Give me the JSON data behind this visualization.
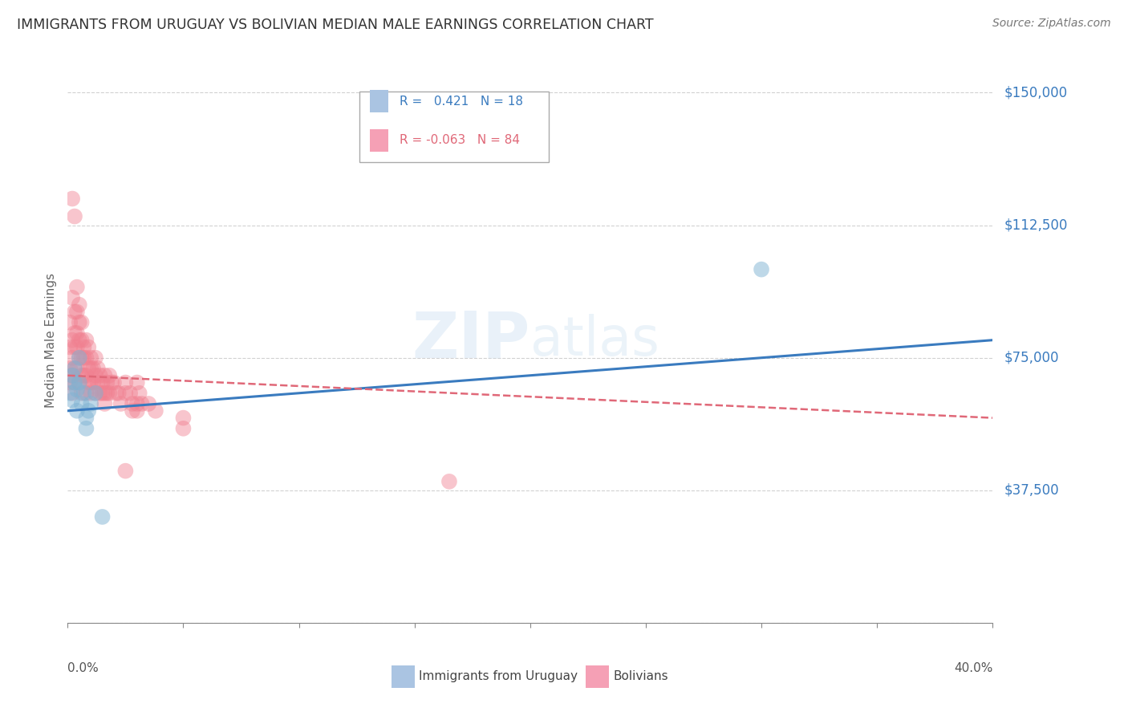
{
  "title": "IMMIGRANTS FROM URUGUAY VS BOLIVIAN MEDIAN MALE EARNINGS CORRELATION CHART",
  "source": "Source: ZipAtlas.com",
  "ylabel": "Median Male Earnings",
  "yticks": [
    0,
    37500,
    75000,
    112500,
    150000
  ],
  "ytick_labels": [
    "",
    "$37,500",
    "$75,000",
    "$112,500",
    "$150,000"
  ],
  "xlim": [
    0.0,
    0.4
  ],
  "ylim": [
    0,
    160000
  ],
  "watermark": "ZIPatlas",
  "legend_series1_label": "R =   0.421   N = 18",
  "legend_series2_label": "R = -0.063   N = 84",
  "legend_series1_color": "#aac4e2",
  "legend_series2_color": "#f5a0b5",
  "series1_color": "#7fb3d3",
  "series2_color": "#f08090",
  "series1_line_color": "#3a7bbf",
  "series2_line_color": "#e06878",
  "uruguay_x": [
    0.001,
    0.002,
    0.002,
    0.003,
    0.003,
    0.004,
    0.004,
    0.005,
    0.005,
    0.006,
    0.007,
    0.008,
    0.008,
    0.009,
    0.01,
    0.012,
    0.3,
    0.015
  ],
  "uruguay_y": [
    65000,
    63000,
    70000,
    68000,
    72000,
    66000,
    60000,
    68000,
    75000,
    62000,
    65000,
    58000,
    55000,
    60000,
    62000,
    65000,
    100000,
    30000
  ],
  "bolivia_x": [
    0.001,
    0.001,
    0.001,
    0.001,
    0.002,
    0.002,
    0.002,
    0.002,
    0.002,
    0.003,
    0.003,
    0.003,
    0.003,
    0.003,
    0.004,
    0.004,
    0.004,
    0.004,
    0.004,
    0.005,
    0.005,
    0.005,
    0.005,
    0.005,
    0.006,
    0.006,
    0.006,
    0.006,
    0.006,
    0.007,
    0.007,
    0.007,
    0.008,
    0.008,
    0.008,
    0.008,
    0.009,
    0.009,
    0.009,
    0.01,
    0.01,
    0.01,
    0.01,
    0.011,
    0.011,
    0.012,
    0.012,
    0.012,
    0.013,
    0.013,
    0.014,
    0.014,
    0.015,
    0.015,
    0.016,
    0.016,
    0.016,
    0.017,
    0.017,
    0.018,
    0.018,
    0.019,
    0.02,
    0.021,
    0.022,
    0.023,
    0.025,
    0.025,
    0.027,
    0.028,
    0.028,
    0.03,
    0.03,
    0.03,
    0.031,
    0.032,
    0.035,
    0.038,
    0.05,
    0.05,
    0.165,
    0.002,
    0.003,
    0.025
  ],
  "bolivia_y": [
    68000,
    72000,
    78000,
    85000,
    65000,
    70000,
    75000,
    80000,
    92000,
    78000,
    82000,
    88000,
    72000,
    68000,
    95000,
    88000,
    82000,
    78000,
    72000,
    90000,
    85000,
    80000,
    75000,
    68000,
    85000,
    80000,
    75000,
    70000,
    65000,
    78000,
    75000,
    70000,
    80000,
    75000,
    70000,
    65000,
    78000,
    72000,
    68000,
    75000,
    72000,
    68000,
    65000,
    72000,
    68000,
    75000,
    70000,
    65000,
    72000,
    68000,
    70000,
    65000,
    68000,
    65000,
    70000,
    65000,
    62000,
    68000,
    65000,
    70000,
    65000,
    68000,
    68000,
    65000,
    65000,
    62000,
    68000,
    65000,
    65000,
    62000,
    60000,
    68000,
    62000,
    60000,
    65000,
    62000,
    62000,
    60000,
    58000,
    55000,
    40000,
    120000,
    115000,
    43000
  ]
}
